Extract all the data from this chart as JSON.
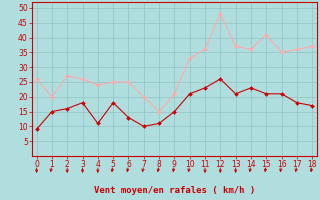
{
  "x": [
    0,
    1,
    2,
    3,
    4,
    5,
    6,
    7,
    8,
    9,
    10,
    11,
    12,
    13,
    14,
    15,
    16,
    17,
    18
  ],
  "wind_avg": [
    9,
    15,
    16,
    18,
    11,
    18,
    13,
    10,
    11,
    15,
    21,
    23,
    26,
    21,
    23,
    21,
    21,
    18,
    17
  ],
  "wind_gust": [
    26,
    20,
    27,
    26,
    24,
    25,
    25,
    20,
    15,
    21,
    33,
    36,
    48,
    37,
    36,
    41,
    35,
    36,
    37
  ],
  "line_avg_color": "#cc0000",
  "line_gust_color": "#ffaaaa",
  "marker_avg_color": "#cc0000",
  "marker_gust_color": "#ffaaaa",
  "bg_color": "#b0dede",
  "grid_color": "#90c4c4",
  "xlabel": "Vent moyen/en rafales ( km/h )",
  "xlabel_color": "#cc0000",
  "tick_color": "#cc0000",
  "axis_color": "#cc0000",
  "ylim": [
    0,
    52
  ],
  "yticks": [
    5,
    10,
    15,
    20,
    25,
    30,
    35,
    40,
    45,
    50
  ],
  "xlim": [
    -0.3,
    18.3
  ],
  "figsize": [
    3.2,
    2.0
  ],
  "dpi": 100,
  "arrow_angles": [
    270,
    240,
    270,
    270,
    270,
    240,
    240,
    240,
    240,
    240,
    240,
    270,
    270,
    270,
    240,
    240,
    240,
    240,
    240
  ]
}
